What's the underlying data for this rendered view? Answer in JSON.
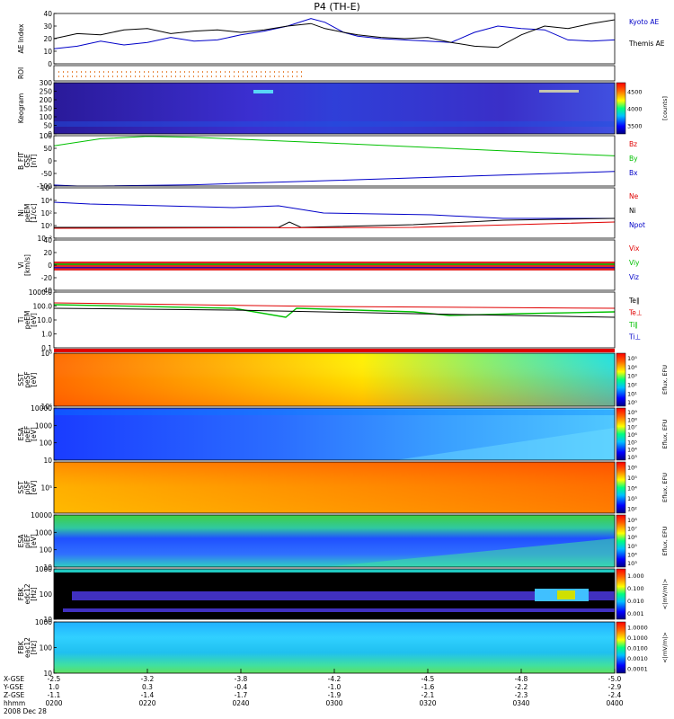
{
  "title": "P4 (TH-E)",
  "colors": {
    "red": "#e00000",
    "green": "#00c000",
    "blue": "#0000c8",
    "black": "#000000"
  },
  "chart_data": {
    "type": "multi-panel-timeseries",
    "x_ticks": [
      "0200",
      "0220",
      "0240",
      "0300",
      "0320",
      "0340",
      "0400"
    ],
    "footer": {
      "rows": [
        {
          "label": "X-GSE",
          "values": [
            "-2.5",
            "-3.2",
            "-3.8",
            "-4.2",
            "-4.5",
            "-4.8",
            "-5.0"
          ]
        },
        {
          "label": "Y-GSE",
          "values": [
            "1.0",
            "0.3",
            "-0.4",
            "-1.0",
            "-1.6",
            "-2.2",
            "-2.9"
          ]
        },
        {
          "label": "Z-GSE",
          "values": [
            "-1.1",
            "-1.4",
            "-1.7",
            "-1.9",
            "-2.1",
            "-2.3",
            "-2.4"
          ]
        },
        {
          "label": "hhmm",
          "values": [
            "0200",
            "0220",
            "0240",
            "0300",
            "0320",
            "0340",
            "0400"
          ]
        }
      ],
      "date": "2008 Dec 28"
    },
    "panels": [
      {
        "id": "ae",
        "ylabel": "AE Index",
        "ylim": [
          0,
          40
        ],
        "yticks": [
          "0",
          "10",
          "20",
          "30",
          "40"
        ],
        "legend": [
          {
            "name": "Kyoto AE",
            "color": "#0000c8"
          },
          {
            "name": "Themis AE",
            "color": "#000000"
          }
        ],
        "series": [
          {
            "name": "Kyoto AE",
            "color": "#0000c8",
            "x": [
              0,
              5,
              10,
              15,
              20,
              25,
              30,
              35,
              40,
              45,
              50,
              55,
              58,
              62,
              65,
              70,
              75,
              80,
              85,
              90,
              95,
              100,
              105,
              110,
              115,
              120
            ],
            "y": [
              12,
              14,
              18,
              15,
              17,
              21,
              18,
              19,
              23,
              26,
              30,
              36,
              33,
              25,
              22,
              20,
              19,
              18,
              17,
              25,
              30,
              28,
              27,
              19,
              18,
              19
            ]
          },
          {
            "name": "Themis AE",
            "color": "#000000",
            "x": [
              0,
              5,
              10,
              15,
              20,
              25,
              30,
              35,
              40,
              45,
              50,
              55,
              58,
              62,
              65,
              70,
              75,
              80,
              85,
              90,
              95,
              100,
              105,
              110,
              115,
              120
            ],
            "y": [
              20,
              24,
              23,
              27,
              28,
              24,
              26,
              27,
              25,
              27,
              30,
              32,
              28,
              25,
              23,
              21,
              20,
              21,
              17,
              14,
              13,
              23,
              30,
              28,
              32,
              35
            ]
          }
        ]
      },
      {
        "id": "roi",
        "ylabel": "ROI"
      },
      {
        "id": "keogram",
        "ylabel": "Keogram",
        "yticks": [
          "0",
          "50",
          "100",
          "150",
          "200",
          "250",
          "300"
        ],
        "colorbar": {
          "ticks": [
            "3500",
            "4000",
            "4500"
          ],
          "label": "[counts]"
        }
      },
      {
        "id": "bfit",
        "ylabel": "B_FIT",
        "ylabel2": "GSE",
        "unit": "[nT]",
        "ylim": [
          -100,
          100
        ],
        "yticks": [
          "-100",
          "-50",
          "0",
          "50",
          "100"
        ],
        "legend": [
          {
            "name": "Bz",
            "color": "#e00000"
          },
          {
            "name": "By",
            "color": "#00c000"
          },
          {
            "name": "Bx",
            "color": "#0000c8"
          }
        ],
        "series": [
          {
            "name": "By",
            "color": "#00c000",
            "x": [
              0,
              10,
              20,
              30,
              60,
              90,
              120
            ],
            "y": [
              60,
              88,
              97,
              94,
              70,
              45,
              20
            ]
          },
          {
            "name": "Bx",
            "color": "#0000c8",
            "x": [
              0,
              5,
              10,
              30,
              60,
              90,
              120
            ],
            "y": [
              -96,
              -100,
              -100,
              -95,
              -78,
              -60,
              -42
            ]
          }
        ]
      },
      {
        "id": "density",
        "ylabel": "Ni",
        "ylabel2": "peEM",
        "unit": "[1/cc]",
        "yticks": [
          "10⁻²",
          "10⁰",
          "10²",
          "10⁴",
          "10⁶"
        ],
        "legend": [
          {
            "name": "Ne",
            "color": "#e00000"
          },
          {
            "name": "Ni",
            "color": "#000000"
          },
          {
            "name": "Npot",
            "color": "#0000c8"
          }
        ]
      },
      {
        "id": "velocity",
        "ylabel": "Vi",
        "unit": "[km/s]",
        "ylim": [
          -40,
          40
        ],
        "yticks": [
          "-40",
          "-20",
          "0",
          "20",
          "40"
        ],
        "legend": [
          {
            "name": "Vix",
            "color": "#e00000"
          },
          {
            "name": "Viy",
            "color": "#00c000"
          },
          {
            "name": "Viz",
            "color": "#0000c8"
          }
        ]
      },
      {
        "id": "temperature",
        "ylabel": "Ti",
        "ylabel2": "peEM",
        "unit": "[eV]",
        "yticks": [
          "0.1",
          "1.0",
          "10.0",
          "100.0",
          "1000.0"
        ],
        "legend": [
          {
            "name": "Te∥",
            "color": "#000000"
          },
          {
            "name": "Te⊥",
            "color": "#e00000"
          },
          {
            "name": "Ti∥",
            "color": "#00c000"
          },
          {
            "name": "Ti⊥",
            "color": "#0000c8"
          }
        ]
      },
      {
        "id": "sst-e",
        "ylabel": "SST",
        "ylabel2": "peSF",
        "unit": "[eV]",
        "yticks": [
          "10⁵",
          "10⁶"
        ],
        "colorbar": {
          "ticks": [
            "10⁰",
            "10¹",
            "10²",
            "10³",
            "10⁴",
            "10⁵"
          ],
          "label": "Eflux, EFU"
        }
      },
      {
        "id": "esa-e",
        "ylabel": "ESA",
        "ylabel2": "peEF",
        "unit": "[eV]",
        "yticks": [
          "10",
          "100",
          "1000",
          "10000"
        ],
        "colorbar": {
          "ticks": [
            "10³",
            "10⁴",
            "10⁵",
            "10⁶",
            "10⁷",
            "10⁸",
            "10⁹"
          ],
          "label": "Eflux, EFU"
        }
      },
      {
        "id": "sst-i",
        "ylabel": "SST",
        "ylabel2": "piSF",
        "unit": "[eV]",
        "yticks": [
          "10⁵"
        ],
        "colorbar": {
          "ticks": [
            "10²",
            "10³",
            "10⁴",
            "10⁵",
            "10⁶"
          ],
          "label": "Eflux, EFU"
        }
      },
      {
        "id": "esa-i",
        "ylabel": "ESA",
        "ylabel2": "piEF",
        "unit": "[eV]",
        "yticks": [
          "10",
          "100",
          "1000",
          "10000"
        ],
        "colorbar": {
          "ticks": [
            "10³",
            "10⁴",
            "10⁵",
            "10⁶",
            "10⁷",
            "10⁸"
          ],
          "label": "Eflux, EFU"
        }
      },
      {
        "id": "fbk-edc",
        "ylabel": "FBK",
        "ylabel2": "edc12",
        "unit": "[Hz]",
        "yticks": [
          "10",
          "100",
          "1000"
        ],
        "colorbar": {
          "ticks": [
            "0.001",
            "0.010",
            "0.100",
            "1.000"
          ],
          "label": "<|mV/m|>"
        }
      },
      {
        "id": "fbk-eac",
        "ylabel": "FBK",
        "ylabel2": "eac12",
        "unit": "[Hz]",
        "yticks": [
          "10",
          "100",
          "1000"
        ],
        "colorbar": {
          "ticks": [
            "0.0001",
            "0.0010",
            "0.0100",
            "0.1000",
            "1.0000"
          ],
          "label": "<|mV/m|>"
        }
      }
    ]
  }
}
